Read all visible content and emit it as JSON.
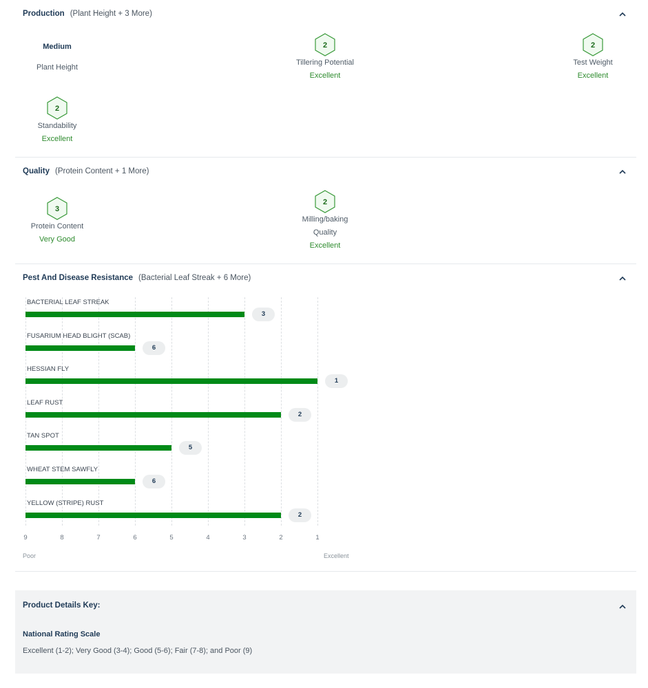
{
  "production": {
    "title": "Production",
    "subtitle": "(Plant Height + 3 More)",
    "plant_height": {
      "value": "Medium",
      "name": "Plant Height"
    },
    "tillering": {
      "score": "2",
      "name": "Tillering Potential",
      "rating": "Excellent"
    },
    "test_weight": {
      "score": "2",
      "name": "Test Weight",
      "rating": "Excellent"
    },
    "standability": {
      "score": "2",
      "name": "Standability",
      "rating": "Excellent"
    }
  },
  "quality": {
    "title": "Quality",
    "subtitle": "(Protein Content + 1 More)",
    "protein": {
      "score": "3",
      "name": "Protein Content",
      "rating": "Very Good"
    },
    "milling": {
      "score": "2",
      "name_line1": "Milling/baking",
      "name_line2": "Quality",
      "rating": "Excellent"
    }
  },
  "pest": {
    "title": "Pest And Disease Resistance",
    "subtitle": "(Bacterial Leaf Streak + 6 More)",
    "labels": [
      "BACTERIAL LEAF STREAK",
      "FUSARIUM HEAD BLIGHT (SCAB)",
      "HESSIAN FLY",
      "LEAF RUST",
      "TAN SPOT",
      "WHEAT STEM SAWFLY",
      "YELLOW (STRIPE) RUST"
    ],
    "scores": [
      "3",
      "6",
      "1",
      "2",
      "5",
      "6",
      "2"
    ],
    "ticks": [
      "9",
      "8",
      "7",
      "6",
      "5",
      "4",
      "3",
      "2",
      "1"
    ],
    "poor_label": "Poor",
    "excellent_label": "Excellent"
  },
  "chart_data": {
    "type": "bar",
    "orientation": "horizontal",
    "categories": [
      "BACTERIAL LEAF STREAK",
      "FUSARIUM HEAD BLIGHT (SCAB)",
      "HESSIAN FLY",
      "LEAF RUST",
      "TAN SPOT",
      "WHEAT STEM SAWFLY",
      "YELLOW (STRIPE) RUST"
    ],
    "values": [
      3,
      6,
      1,
      2,
      5,
      6,
      2
    ],
    "xlim": [
      9,
      1
    ],
    "xlabel_left": "Poor",
    "xlabel_right": "Excellent",
    "bar_color": "#008a17",
    "grid": true
  },
  "key": {
    "title": "Product Details Key:",
    "subtitle": "National Rating Scale",
    "text": "Excellent (1-2); Very Good (3-4); Good (5-6); Fair (7-8); and Poor (9)"
  },
  "colors": {
    "accent_green": "#008a17",
    "rating_green": "#2e8b2e",
    "heading": "#1f3a56"
  }
}
